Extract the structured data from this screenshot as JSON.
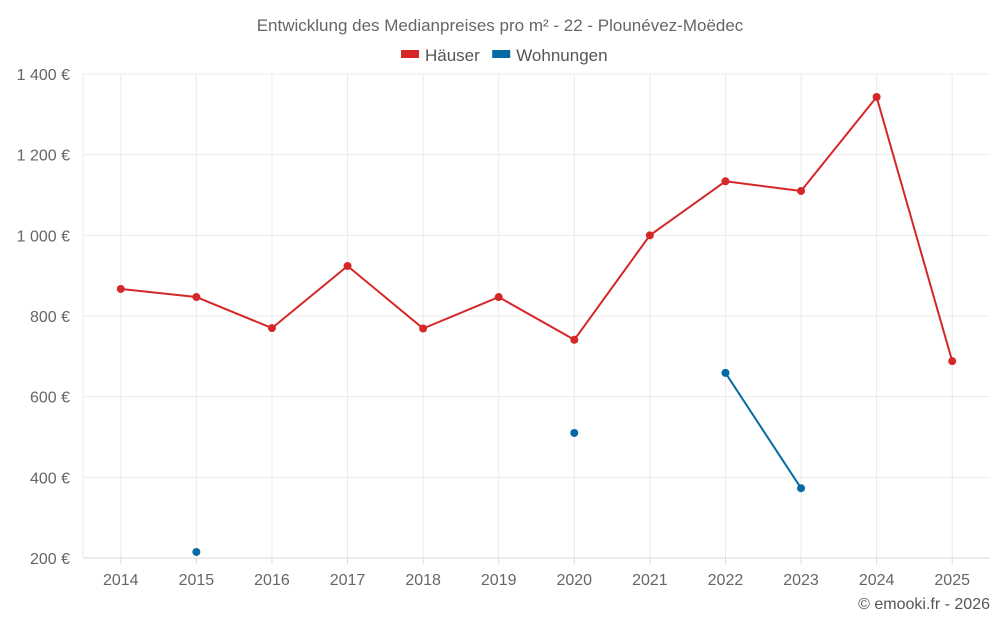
{
  "chart_data": {
    "type": "line",
    "title": "Entwicklung des Medianpreises pro m² - 22 - Plounévez-Moëdec",
    "categories": [
      "2014",
      "2015",
      "2016",
      "2017",
      "2018",
      "2019",
      "2020",
      "2021",
      "2022",
      "2023",
      "2024",
      "2025"
    ],
    "ylim": [
      200,
      1400
    ],
    "yticks": [
      200,
      400,
      600,
      800,
      1000,
      1200,
      1400
    ],
    "ytick_labels": [
      "200 €",
      "400 €",
      "600 €",
      "800 €",
      "1 000 €",
      "1 200 €",
      "1 400 €"
    ],
    "legend_position": "top-center",
    "series": [
      {
        "name": "Häuser",
        "color": "#d62728",
        "values": [
          867,
          847,
          770,
          924,
          769,
          847,
          741,
          1000,
          1134,
          1110,
          1343,
          688
        ]
      },
      {
        "name": "Wohnungen",
        "color": "#0569a3",
        "values": [
          null,
          215,
          null,
          null,
          null,
          null,
          510,
          null,
          659,
          373,
          null,
          null
        ]
      }
    ]
  },
  "credit": "© emooki.fr - 2026"
}
